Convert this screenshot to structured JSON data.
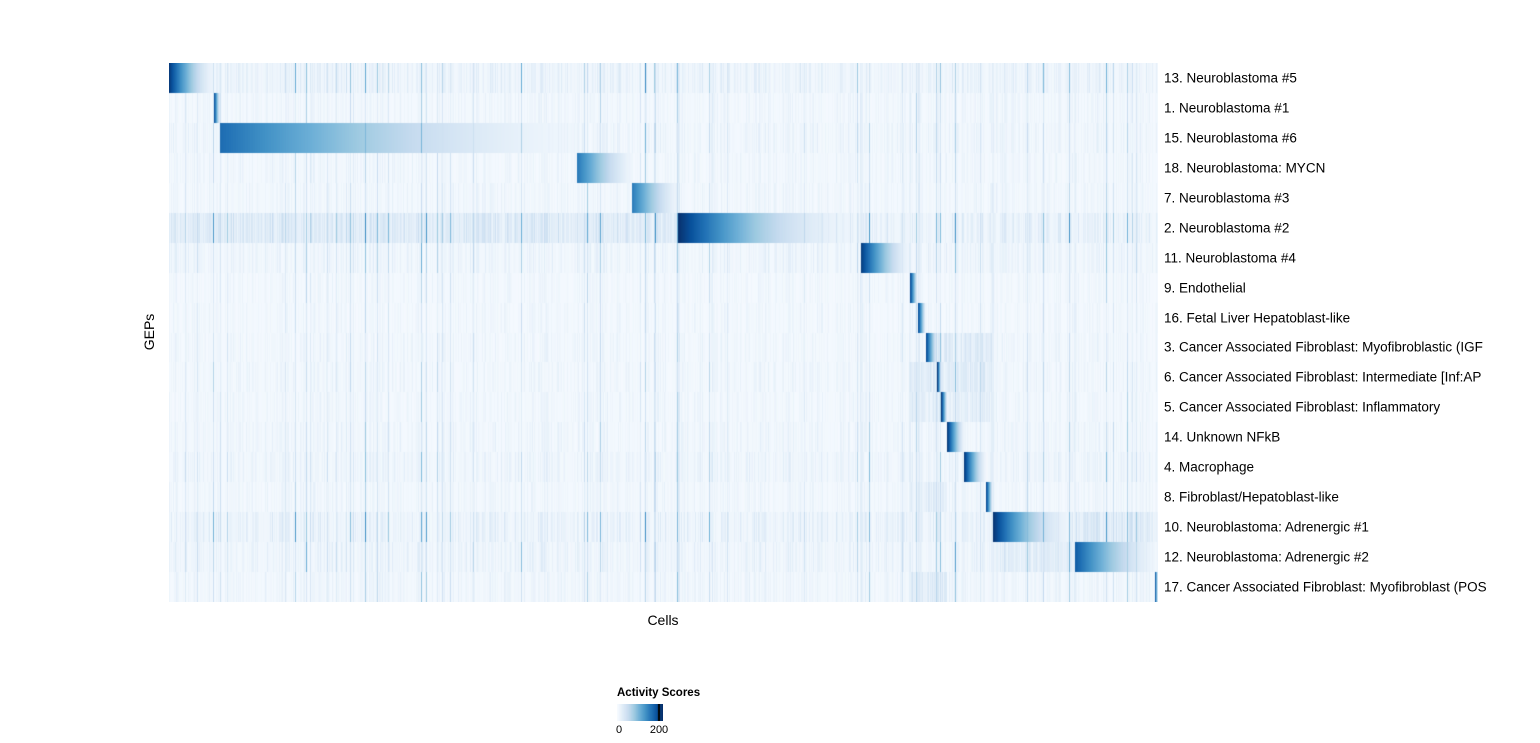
{
  "chart_data": {
    "type": "heatmap",
    "title": "",
    "xlabel": "Cells",
    "ylabel": "GEPs",
    "legend_title": "Activity Scores",
    "tick_labels": [
      "0",
      "200"
    ],
    "colorbar": {
      "range": [
        0,
        220
      ],
      "ticks": [
        0,
        200
      ],
      "stops": [
        "#f7fbff",
        "#deebf7",
        "#c6dbef",
        "#9ecae1",
        "#6baed6",
        "#4292c6",
        "#2171b5",
        "#08519c",
        "#08306b"
      ]
    },
    "layout": {
      "legend_position": "bottom-left",
      "grid": false,
      "row_labels_side": "right"
    },
    "seed": 20240613,
    "noise": {
      "base": 0.015,
      "var": 0.09,
      "spike_prob": 0.05
    },
    "column_lines": [
      [
        0.515,
        0.16,
        0.003
      ],
      [
        0.7,
        0.13,
        0.003
      ],
      [
        0.749,
        0.12,
        0.002
      ],
      [
        0.758,
        0.16,
        0.002
      ],
      [
        0.833,
        0.13,
        0.002
      ],
      [
        0.916,
        0.12,
        0.002
      ]
    ],
    "rows": [
      {
        "label": "13. Neuroblastoma #5",
        "block": [
          0.0,
          0.046
        ],
        "peak": 205,
        "gamma": 1.5,
        "noise": 1.5
      },
      {
        "label": "1. Neuroblastoma #1",
        "block": [
          0.046,
          0.052
        ],
        "peak": 180,
        "gamma": 1.2,
        "noise": 0.9
      },
      {
        "label": "15. Neuroblastoma #6",
        "block": [
          0.052,
          0.413
        ],
        "peak": 160,
        "gamma": 1.6,
        "noise": 1.1
      },
      {
        "label": "18. Neuroblastoma: MYCN",
        "block": [
          0.413,
          0.468
        ],
        "peak": 150,
        "gamma": 1.3,
        "noise": 0.9
      },
      {
        "label": "7. Neuroblastoma #3",
        "block": [
          0.468,
          0.515
        ],
        "peak": 150,
        "gamma": 1.3,
        "noise": 0.9
      },
      {
        "label": "2. Neuroblastoma #2",
        "block": [
          0.515,
          0.7
        ],
        "peak": 210,
        "gamma": 1.9,
        "noise": 1.8,
        "bands": [
          [
            0.0,
            0.515,
            0.07
          ]
        ]
      },
      {
        "label": "11. Neuroblastoma #4",
        "block": [
          0.7,
          0.749
        ],
        "peak": 200,
        "gamma": 1.4,
        "noise": 1.2
      },
      {
        "label": "9. Endothelial",
        "block": [
          0.749,
          0.757
        ],
        "peak": 205,
        "gamma": 1.0,
        "noise": 0.8
      },
      {
        "label": "16. Fetal Liver Hepatoblast-like",
        "block": [
          0.757,
          0.765
        ],
        "peak": 205,
        "gamma": 1.0,
        "noise": 0.8
      },
      {
        "label": "3. Cancer Associated Fibroblast: Myofibroblastic (IGF",
        "block": [
          0.765,
          0.777
        ],
        "peak": 205,
        "gamma": 1.1,
        "noise": 0.9,
        "bands": [
          [
            0.777,
            0.833,
            0.1
          ]
        ]
      },
      {
        "label": "6. Cancer Associated Fibroblast: Intermediate [Inf:AP",
        "block": [
          0.777,
          0.781
        ],
        "peak": 205,
        "gamma": 1.0,
        "noise": 0.9,
        "bands": [
          [
            0.749,
            0.833,
            0.1
          ]
        ]
      },
      {
        "label": "5. Cancer Associated Fibroblast: Inflammatory",
        "block": [
          0.781,
          0.787
        ],
        "peak": 205,
        "gamma": 1.0,
        "noise": 0.9,
        "bands": [
          [
            0.749,
            0.833,
            0.08
          ]
        ]
      },
      {
        "label": "14. Unknown NFkB",
        "block": [
          0.787,
          0.804
        ],
        "peak": 205,
        "gamma": 1.2,
        "noise": 1.0
      },
      {
        "label": "4. Macrophage",
        "block": [
          0.804,
          0.826
        ],
        "peak": 205,
        "gamma": 1.3,
        "noise": 1.2
      },
      {
        "label": "8. Fibroblast/Hepatoblast-like",
        "block": [
          0.826,
          0.833
        ],
        "peak": 205,
        "gamma": 1.0,
        "noise": 0.9,
        "bands": [
          [
            0.749,
            0.787,
            0.08
          ]
        ]
      },
      {
        "label": "10. Neuroblastoma: Adrenergic #1",
        "block": [
          0.833,
          0.916
        ],
        "peak": 210,
        "gamma": 1.8,
        "noise": 1.6,
        "bands": [
          [
            0.916,
            0.997,
            0.08
          ]
        ]
      },
      {
        "label": "12. Neuroblastoma: Adrenergic #2",
        "block": [
          0.916,
          0.997
        ],
        "peak": 175,
        "gamma": 1.4,
        "noise": 1.3,
        "bands": [
          [
            0.833,
            0.916,
            0.07
          ]
        ]
      },
      {
        "label": "17. Cancer Associated Fibroblast: Myofibroblast (POS",
        "block": [
          0.997,
          1.0
        ],
        "peak": 200,
        "gamma": 1.0,
        "noise": 1.0,
        "bands": [
          [
            0.749,
            0.787,
            0.12
          ]
        ]
      }
    ]
  }
}
